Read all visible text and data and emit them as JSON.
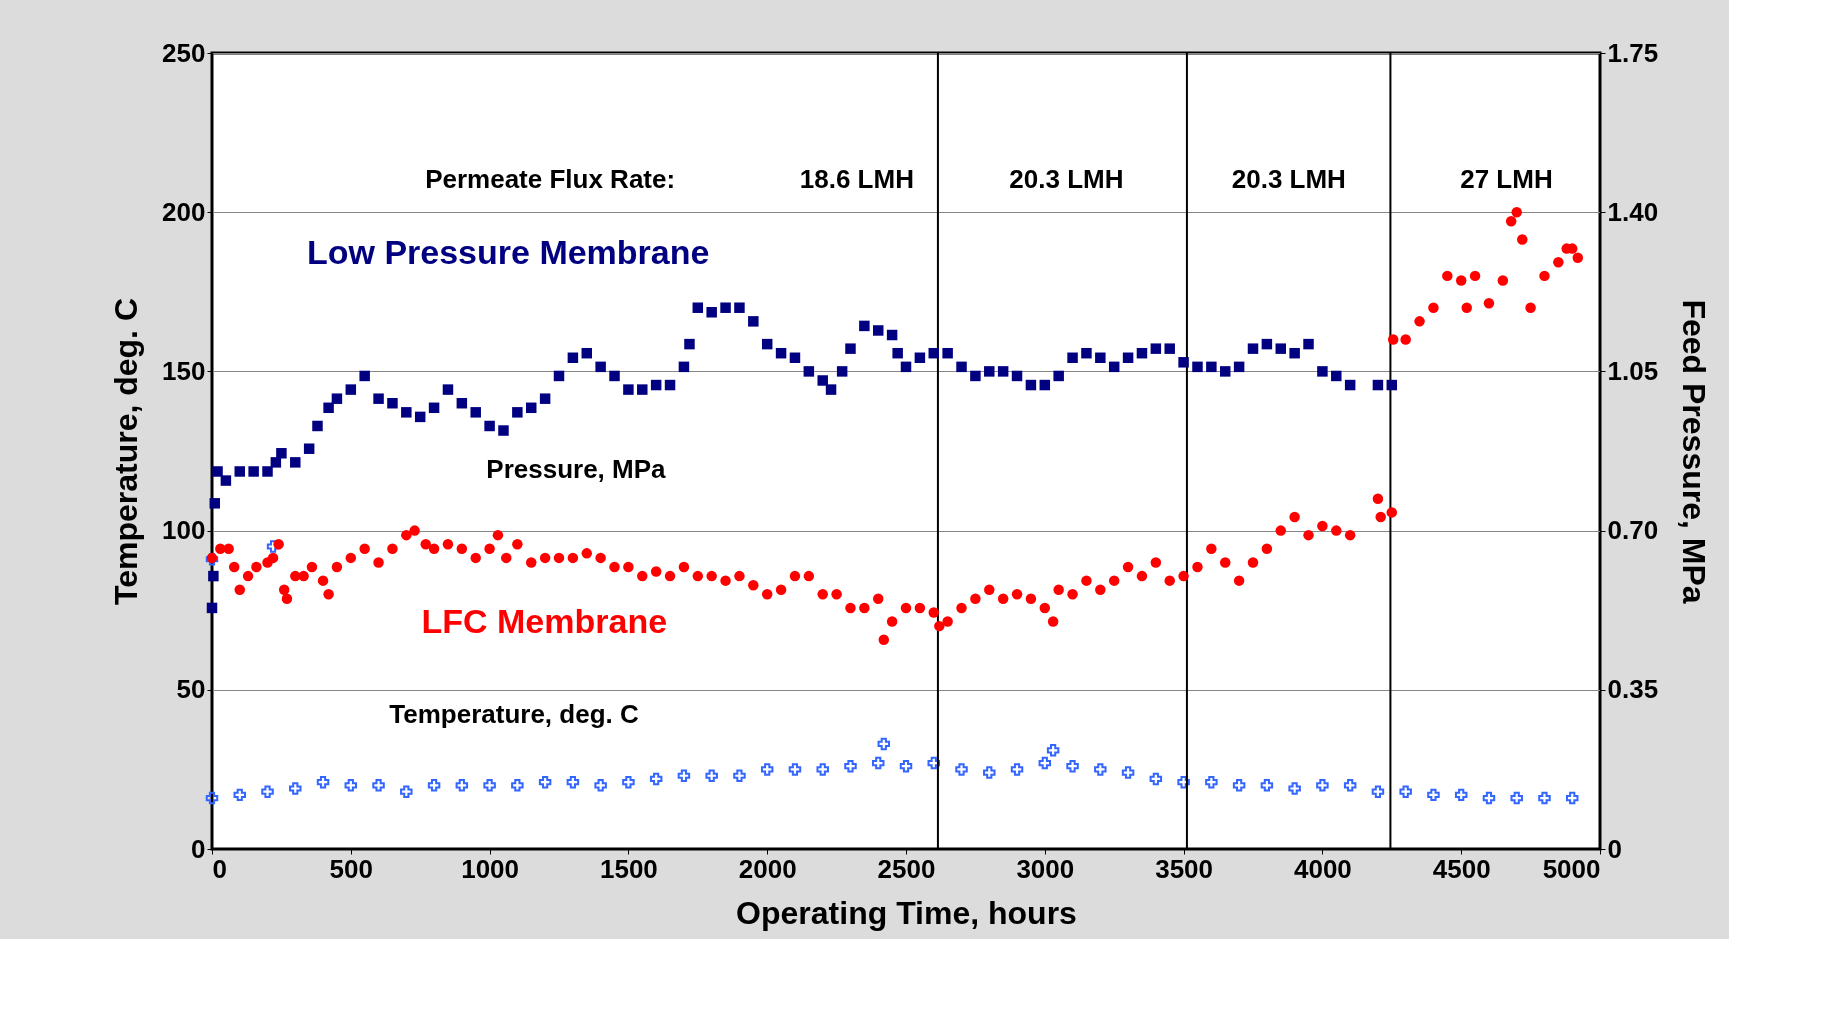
{
  "chart_data": {
    "type": "scatter",
    "xlabel": "Operating Time, hours",
    "ylabel": "Temperature, deg. C",
    "y2label": "Feed Pressure, MPa",
    "xlim": [
      0,
      5000
    ],
    "xticks": [
      0,
      500,
      1000,
      1500,
      2000,
      2500,
      3000,
      3500,
      4000,
      4500,
      5000
    ],
    "ylim": [
      0,
      250
    ],
    "yticks": [
      0,
      50,
      100,
      150,
      200,
      250
    ],
    "y2lim": [
      0,
      1.75
    ],
    "y2ticks": [
      0,
      {
        "value": 0.35,
        "label": "0.35"
      },
      {
        "value": 0.7,
        "label": "0.70"
      },
      {
        "value": 1.05,
        "label": "1.05"
      },
      {
        "value": 1.4,
        "label": "1.40"
      },
      {
        "value": 1.75,
        "label": "1.75"
      }
    ],
    "grid": "y",
    "series": [
      {
        "name": "Low Pressure Membrane",
        "color": "#000080",
        "marker": "square",
        "axis": "y2",
        "x": [
          0,
          5,
          10,
          20,
          50,
          100,
          150,
          200,
          230,
          250,
          300,
          350,
          380,
          420,
          450,
          500,
          550,
          600,
          650,
          700,
          750,
          800,
          850,
          900,
          950,
          1000,
          1050,
          1100,
          1150,
          1200,
          1250,
          1300,
          1350,
          1400,
          1450,
          1500,
          1550,
          1600,
          1650,
          1700,
          1720,
          1750,
          1800,
          1850,
          1900,
          1950,
          2000,
          2050,
          2100,
          2150,
          2200,
          2230,
          2270,
          2300,
          2350,
          2400,
          2450,
          2470,
          2500,
          2550,
          2600,
          2650,
          2700,
          2750,
          2800,
          2850,
          2900,
          2950,
          3000,
          3050,
          3100,
          3150,
          3200,
          3250,
          3300,
          3350,
          3400,
          3450,
          3500,
          3550,
          3600,
          3650,
          3700,
          3750,
          3800,
          3850,
          3900,
          3950,
          4000,
          4050,
          4100,
          4200,
          4250
        ],
        "values": [
          0.53,
          0.6,
          0.76,
          0.83,
          0.81,
          0.83,
          0.83,
          0.83,
          0.85,
          0.87,
          0.85,
          0.88,
          0.93,
          0.97,
          0.99,
          1.01,
          1.04,
          0.99,
          0.98,
          0.96,
          0.95,
          0.97,
          1.01,
          0.98,
          0.96,
          0.93,
          0.92,
          0.96,
          0.97,
          0.99,
          1.04,
          1.08,
          1.09,
          1.06,
          1.04,
          1.01,
          1.01,
          1.02,
          1.02,
          1.06,
          1.11,
          1.19,
          1.18,
          1.19,
          1.19,
          1.16,
          1.11,
          1.09,
          1.08,
          1.05,
          1.03,
          1.01,
          1.05,
          1.1,
          1.15,
          1.14,
          1.13,
          1.09,
          1.06,
          1.08,
          1.09,
          1.09,
          1.06,
          1.04,
          1.05,
          1.05,
          1.04,
          1.02,
          1.02,
          1.04,
          1.08,
          1.09,
          1.08,
          1.06,
          1.08,
          1.09,
          1.1,
          1.1,
          1.07,
          1.06,
          1.06,
          1.05,
          1.06,
          1.1,
          1.11,
          1.1,
          1.09,
          1.11,
          1.05,
          1.04,
          1.02,
          1.02,
          1.02
        ]
      },
      {
        "name": "LFC Membrane",
        "color": "#ff0000",
        "marker": "circle",
        "axis": "y2",
        "x": [
          0,
          30,
          60,
          80,
          100,
          130,
          160,
          200,
          220,
          240,
          260,
          270,
          300,
          330,
          360,
          400,
          420,
          450,
          500,
          550,
          600,
          650,
          700,
          730,
          770,
          800,
          850,
          900,
          950,
          1000,
          1030,
          1060,
          1100,
          1150,
          1200,
          1250,
          1300,
          1350,
          1400,
          1450,
          1500,
          1550,
          1600,
          1650,
          1700,
          1750,
          1800,
          1850,
          1900,
          1950,
          2000,
          2050,
          2100,
          2150,
          2200,
          2250,
          2300,
          2350,
          2400,
          2420,
          2450,
          2500,
          2550,
          2600,
          2620,
          2650,
          2700,
          2750,
          2800,
          2850,
          2900,
          2950,
          3000,
          3030,
          3050,
          3100,
          3150,
          3200,
          3250,
          3300,
          3350,
          3400,
          3450,
          3500,
          3550,
          3600,
          3650,
          3700,
          3750,
          3800,
          3850,
          3900,
          3950,
          4000,
          4050,
          4100,
          4200,
          4210,
          4250,
          4255,
          4300,
          4350,
          4400,
          4450,
          4500,
          4520,
          4550,
          4600,
          4650,
          4680,
          4700,
          4720,
          4750,
          4800,
          4850,
          4880,
          4900,
          4920
        ],
        "values": [
          0.64,
          0.66,
          0.66,
          0.62,
          0.57,
          0.6,
          0.62,
          0.63,
          0.64,
          0.67,
          0.57,
          0.55,
          0.6,
          0.6,
          0.62,
          0.59,
          0.56,
          0.62,
          0.64,
          0.66,
          0.63,
          0.66,
          0.69,
          0.7,
          0.67,
          0.66,
          0.67,
          0.66,
          0.64,
          0.66,
          0.69,
          0.64,
          0.67,
          0.63,
          0.64,
          0.64,
          0.64,
          0.65,
          0.64,
          0.62,
          0.62,
          0.6,
          0.61,
          0.6,
          0.62,
          0.6,
          0.6,
          0.59,
          0.6,
          0.58,
          0.56,
          0.57,
          0.6,
          0.6,
          0.56,
          0.56,
          0.53,
          0.53,
          0.55,
          0.46,
          0.5,
          0.53,
          0.53,
          0.52,
          0.49,
          0.5,
          0.53,
          0.55,
          0.57,
          0.55,
          0.56,
          0.55,
          0.53,
          0.5,
          0.57,
          0.56,
          0.59,
          0.57,
          0.59,
          0.62,
          0.6,
          0.63,
          0.59,
          0.6,
          0.62,
          0.66,
          0.63,
          0.59,
          0.63,
          0.66,
          0.7,
          0.73,
          0.69,
          0.71,
          0.7,
          0.69,
          0.77,
          0.73,
          0.74,
          1.12,
          1.12,
          1.16,
          1.19,
          1.26,
          1.25,
          1.19,
          1.26,
          1.2,
          1.25,
          1.38,
          1.4,
          1.34,
          1.19,
          1.26,
          1.29,
          1.32,
          1.32,
          1.3
        ]
      },
      {
        "name": "Temperature, deg. C",
        "color": "#3366ff",
        "marker": "cross",
        "x": [
          0,
          0,
          100,
          200,
          220,
          300,
          400,
          500,
          600,
          700,
          800,
          900,
          1000,
          1100,
          1200,
          1300,
          1400,
          1500,
          1600,
          1700,
          1800,
          1900,
          2000,
          2100,
          2200,
          2300,
          2400,
          2420,
          2500,
          2600,
          2700,
          2800,
          2900,
          3000,
          3030,
          3100,
          3200,
          3300,
          3400,
          3500,
          3600,
          3700,
          3800,
          3900,
          4000,
          4100,
          4200,
          4300,
          4400,
          4500,
          4600,
          4700,
          4800,
          4900
        ],
        "values": [
          16,
          91,
          17,
          18,
          95,
          19,
          21,
          20,
          20,
          18,
          20,
          20,
          20,
          20,
          21,
          21,
          20,
          21,
          22,
          23,
          23,
          23,
          25,
          25,
          25,
          26,
          27,
          33,
          26,
          27,
          25,
          24,
          25,
          27,
          31,
          26,
          25,
          24,
          22,
          21,
          21,
          20,
          20,
          19,
          20,
          20,
          18,
          18,
          17,
          17,
          16,
          16,
          16,
          16
        ]
      }
    ],
    "ref_lines": [
      {
        "axis": "x",
        "value": 2615
      },
      {
        "axis": "x",
        "value": 3512
      },
      {
        "axis": "x",
        "value": 4245
      }
    ],
    "annotations": [
      "Permeate Flux Rate:",
      "18.6 LMH",
      "20.3 LMH",
      "20.3 LMH",
      "27 LMH",
      "Pressure, MPa"
    ]
  }
}
